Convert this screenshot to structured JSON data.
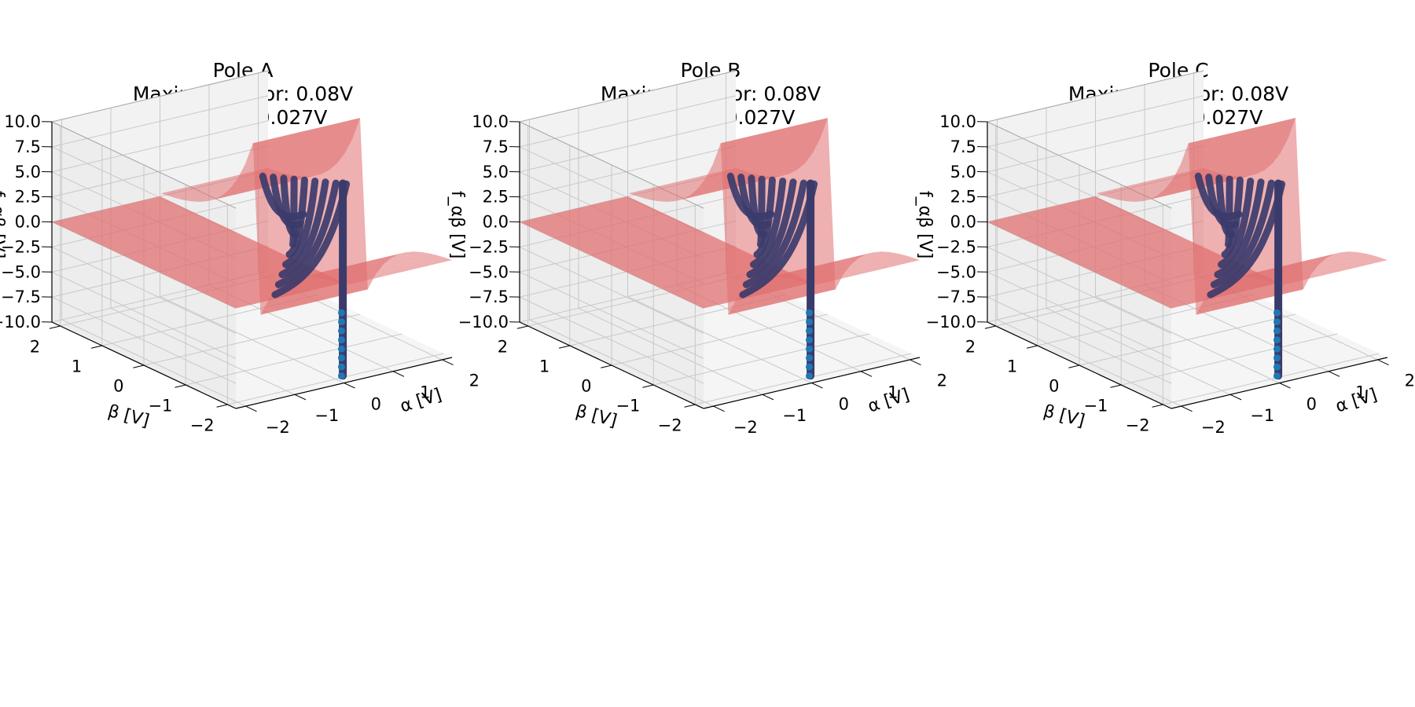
{
  "chart_data": [
    {
      "type": "surface3d",
      "title_lines": [
        "Pole A",
        "Maximum error: 0.08V",
        "Std error: 0.027V"
      ],
      "xlabel": "α [V]",
      "ylabel": "β [V]",
      "zlabel": "f_αβ [V]",
      "xlim": [
        -2.2,
        2.2
      ],
      "ylim": [
        -2.2,
        2.2
      ],
      "zlim": [
        -10,
        10
      ],
      "xticks": [
        "−2",
        "−1",
        "0",
        "1",
        "2"
      ],
      "yticks": [
        "−2",
        "−1",
        "0",
        "1",
        "2"
      ],
      "zticks": [
        "−10.0",
        "−7.5",
        "−5.0",
        "−2.5",
        "0.0",
        "2.5",
        "5.0",
        "7.5",
        "10.0"
      ],
      "grid": true,
      "surface_color": "#e07070",
      "points_color": "#3b3b6b",
      "edge_points_color": "#1f77b4",
      "scatter_beta_levels": [
        0.0,
        0.25,
        0.5,
        0.75,
        1.0,
        1.25,
        1.5,
        1.75,
        2.0
      ]
    },
    {
      "type": "surface3d",
      "title_lines": [
        "Pole B",
        "Maximum error: 0.08V",
        "Std error: 0.027V"
      ],
      "xlabel": "α [V]",
      "ylabel": "β [V]",
      "zlabel": "f_αβ [V]",
      "xlim": [
        -2.2,
        2.2
      ],
      "ylim": [
        -2.2,
        2.2
      ],
      "zlim": [
        -10,
        10
      ],
      "xticks": [
        "−2",
        "−1",
        "0",
        "1",
        "2"
      ],
      "yticks": [
        "−2",
        "−1",
        "0",
        "1",
        "2"
      ],
      "zticks": [
        "−10.0",
        "−7.5",
        "−5.0",
        "−2.5",
        "0.0",
        "2.5",
        "5.0",
        "7.5",
        "10.0"
      ],
      "grid": true,
      "surface_color": "#e07070",
      "points_color": "#3b3b6b",
      "edge_points_color": "#1f77b4",
      "scatter_beta_levels": [
        0.0,
        0.25,
        0.5,
        0.75,
        1.0,
        1.25,
        1.5,
        1.75,
        2.0
      ]
    },
    {
      "type": "surface3d",
      "title_lines": [
        "Pole C",
        "Maximum error: 0.08V",
        "Std error: 0.027V"
      ],
      "xlabel": "α [V]",
      "ylabel": "β [V]",
      "zlabel": "f_αβ [V]",
      "xlim": [
        -2.2,
        2.2
      ],
      "ylim": [
        -2.2,
        2.2
      ],
      "zlim": [
        -10,
        10
      ],
      "xticks": [
        "−2",
        "−1",
        "0",
        "1",
        "2"
      ],
      "yticks": [
        "−2",
        "−1",
        "0",
        "1",
        "2"
      ],
      "zticks": [
        "−10.0",
        "−7.5",
        "−5.0",
        "−2.5",
        "0.0",
        "2.5",
        "5.0",
        "7.5",
        "10.0"
      ],
      "grid": true,
      "surface_color": "#e07070",
      "points_color": "#3b3b6b",
      "edge_points_color": "#1f77b4",
      "scatter_beta_levels": [
        0.0,
        0.25,
        0.5,
        0.75,
        1.0,
        1.25,
        1.5,
        1.75,
        2.0
      ]
    }
  ]
}
